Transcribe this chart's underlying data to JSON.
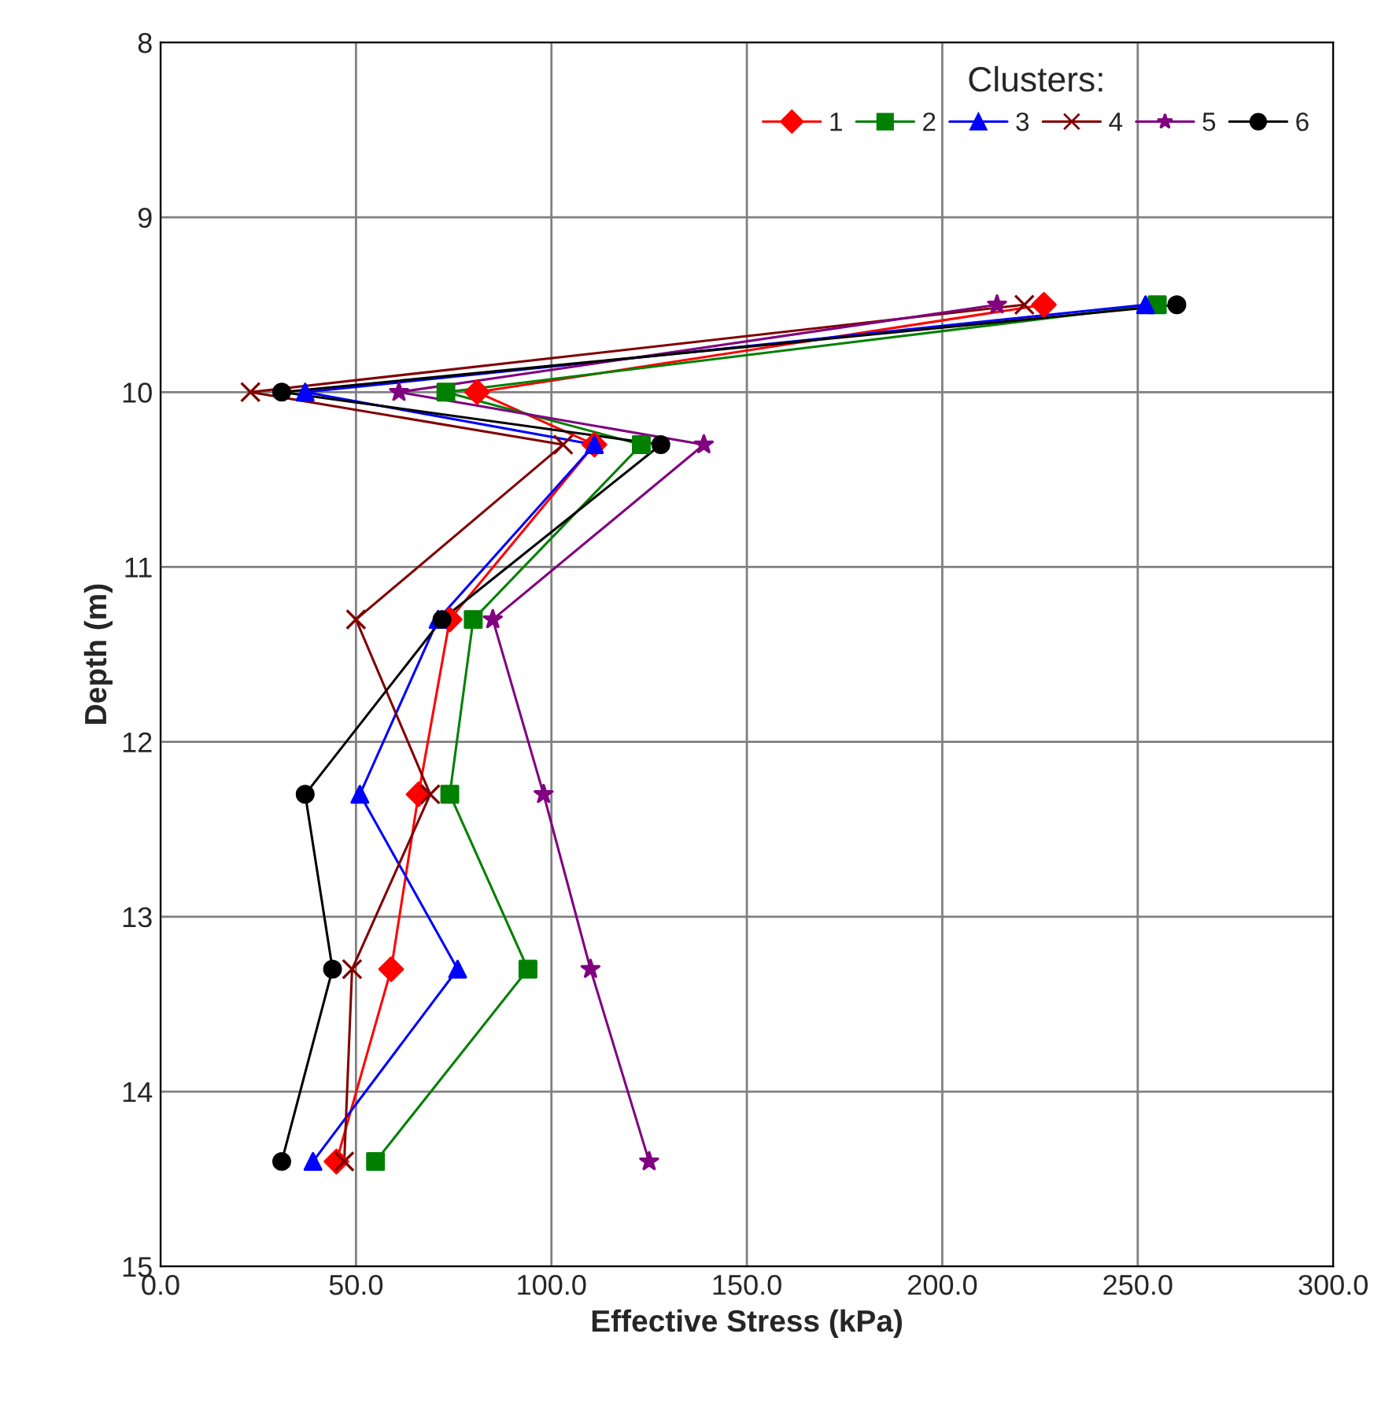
{
  "chart_data": {
    "type": "line",
    "xlabel": "Effective Stress (kPa)",
    "ylabel": "Depth (m)",
    "legend_title": "Clusters:",
    "legend": "top right",
    "grid": true,
    "line_style": "solid",
    "xlim": [
      0,
      300
    ],
    "xticks": [
      {
        "value": 0,
        "label": "0.0"
      },
      {
        "value": 50,
        "label": "50.0"
      },
      {
        "value": 100,
        "label": "100.0"
      },
      {
        "value": 150,
        "label": "150.0"
      },
      {
        "value": 200,
        "label": "200.0"
      },
      {
        "value": 250,
        "label": "250.0"
      },
      {
        "value": 300,
        "label": "300.0"
      }
    ],
    "ylim": [
      15,
      8
    ],
    "yticks": [
      8,
      9,
      10,
      11,
      12,
      13,
      14,
      15
    ],
    "series": [
      {
        "name": "1",
        "color": "#ff0000",
        "marker": "diamond",
        "x": [
          226,
          81,
          111,
          74,
          66,
          59,
          45
        ],
        "values": [
          9.5,
          10.0,
          10.3,
          11.3,
          12.3,
          13.3,
          14.4
        ]
      },
      {
        "name": "2",
        "color": "#008000",
        "marker": "square",
        "x": [
          255,
          73,
          123,
          80,
          74,
          94,
          55
        ],
        "values": [
          9.5,
          10.0,
          10.3,
          11.3,
          12.3,
          13.3,
          14.4
        ]
      },
      {
        "name": "3",
        "color": "#0000ff",
        "marker": "triangle",
        "x": [
          252,
          37,
          111,
          71,
          51,
          76,
          39
        ],
        "values": [
          9.5,
          10.0,
          10.3,
          11.3,
          12.3,
          13.3,
          14.4
        ]
      },
      {
        "name": "4",
        "color": "#800000",
        "marker": "cross",
        "x": [
          221,
          23,
          103,
          50,
          69,
          49,
          47
        ],
        "values": [
          9.5,
          10.0,
          10.3,
          11.3,
          12.3,
          13.3,
          14.4
        ]
      },
      {
        "name": "5",
        "color": "#800080",
        "marker": "star",
        "x": [
          214,
          61,
          139,
          85,
          98,
          110,
          125
        ],
        "values": [
          9.5,
          10.0,
          10.3,
          11.3,
          12.3,
          13.3,
          14.4
        ]
      },
      {
        "name": "6",
        "color": "#000000",
        "marker": "circle",
        "x": [
          260,
          31,
          128,
          72,
          37,
          44,
          31
        ],
        "values": [
          9.5,
          10.0,
          10.3,
          11.3,
          12.3,
          13.3,
          14.4
        ]
      }
    ]
  }
}
